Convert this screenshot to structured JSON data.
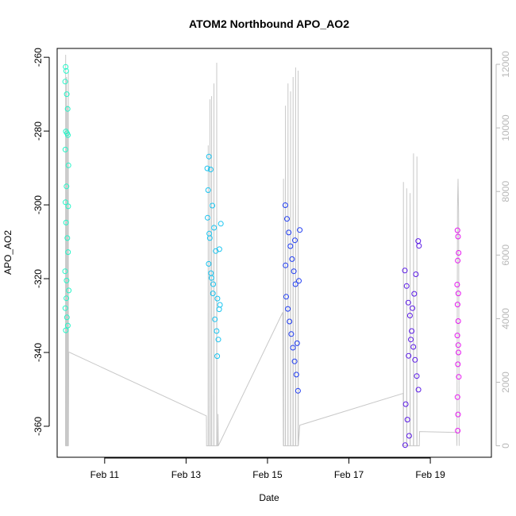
{
  "chart_data": {
    "type": "scatter",
    "title": "ATOM2 Northbound APO_AO2",
    "xlabel": "Date",
    "ylabel": "APO_AO2",
    "xlim": [
      "2018-02-09T20:00",
      "2018-02-20T12:00"
    ],
    "ylim": [
      -368.4,
      -257.6
    ],
    "y_ticks": [
      -360,
      -340,
      -320,
      -300,
      -280,
      -260
    ],
    "y_tick_labels": [
      "-360",
      "-340",
      "-320",
      "-300",
      "-280",
      "-260"
    ],
    "x_ticks": [
      "2018-02-11",
      "2018-02-13",
      "2018-02-15",
      "2018-02-17",
      "2018-02-19"
    ],
    "x_tick_labels": [
      "Feb 11",
      "Feb 13",
      "Feb 15",
      "Feb 17",
      "Feb 19"
    ],
    "y2_ylim": [
      -360,
      12500
    ],
    "y2_ticks": [
      0,
      2000,
      4000,
      6000,
      8000,
      10000,
      12000
    ],
    "y2_tick_labels": [
      "0",
      "2000",
      "4000",
      "6000",
      "8000",
      "10000",
      "12000"
    ],
    "y2_color": "#b8b8b8",
    "point_style": "open-circle",
    "color_scale": "time-gradient",
    "grid": false,
    "series": [
      {
        "color": "#26f5c8",
        "points": [
          [
            "2018-02-10T01:00",
            -262.6
          ],
          [
            "2018-02-10T01:20",
            -263.7
          ],
          [
            "2018-02-10T00:45",
            -266.6
          ],
          [
            "2018-02-10T01:40",
            -270.0
          ],
          [
            "2018-02-10T02:10",
            -274.0
          ],
          [
            "2018-02-10T01:10",
            -280.1
          ],
          [
            "2018-02-10T01:50",
            -280.6
          ],
          [
            "2018-02-10T02:20",
            -281.1
          ],
          [
            "2018-02-10T00:50",
            -285.0
          ],
          [
            "2018-02-10T02:40",
            -289.3
          ],
          [
            "2018-02-10T01:30",
            -295.0
          ],
          [
            "2018-02-10T00:55",
            -299.3
          ],
          [
            "2018-02-10T02:30",
            -300.4
          ],
          [
            "2018-02-10T01:15",
            -304.8
          ],
          [
            "2018-02-10T02:00",
            -309.0
          ],
          [
            "2018-02-10T00:40",
            -318.0
          ],
          [
            "2018-02-10T02:50",
            -323.2
          ],
          [
            "2018-02-10T01:25",
            -325.3
          ],
          [
            "2018-02-10T00:50",
            -328.0
          ],
          [
            "2018-02-10T01:45",
            -330.5
          ],
          [
            "2018-02-10T02:15",
            -332.7
          ],
          [
            "2018-02-10T01:05",
            -334.0
          ],
          [
            "2018-02-10T01:35",
            -320.5
          ],
          [
            "2018-02-10T02:25",
            -312.8
          ]
        ]
      },
      {
        "color": "#19c4f0",
        "points": [
          [
            "2018-02-13T12:30",
            -290.1
          ],
          [
            "2018-02-13T13:30",
            -286.9
          ],
          [
            "2018-02-13T14:30",
            -290.4
          ],
          [
            "2018-02-13T13:00",
            -296.0
          ],
          [
            "2018-02-13T15:30",
            -300.2
          ],
          [
            "2018-02-13T12:40",
            -303.5
          ],
          [
            "2018-02-13T16:30",
            -306.2
          ],
          [
            "2018-02-13T14:00",
            -309.0
          ],
          [
            "2018-02-13T17:30",
            -312.5
          ],
          [
            "2018-02-13T13:20",
            -316.0
          ],
          [
            "2018-02-13T15:00",
            -319.8
          ],
          [
            "2018-02-13T16:00",
            -321.5
          ],
          [
            "2018-02-13T18:30",
            -325.4
          ],
          [
            "2018-02-13T19:30",
            -328.3
          ],
          [
            "2018-02-13T17:00",
            -331.0
          ],
          [
            "2018-02-13T18:00",
            -334.2
          ],
          [
            "2018-02-13T19:00",
            -336.5
          ],
          [
            "2018-02-13T18:20",
            -341.0
          ],
          [
            "2018-02-13T20:00",
            -327.1
          ],
          [
            "2018-02-13T20:30",
            -305.1
          ],
          [
            "2018-02-13T19:40",
            -312.0
          ],
          [
            "2018-02-13T14:40",
            -318.5
          ],
          [
            "2018-02-13T13:40",
            -307.8
          ],
          [
            "2018-02-13T15:50",
            -324.0
          ]
        ]
      },
      {
        "color": "#1f3cf2",
        "points": [
          [
            "2018-02-15T10:30",
            -300.1
          ],
          [
            "2018-02-15T11:30",
            -303.8
          ],
          [
            "2018-02-15T12:30",
            -307.5
          ],
          [
            "2018-02-15T13:30",
            -311.2
          ],
          [
            "2018-02-15T14:30",
            -314.7
          ],
          [
            "2018-02-15T15:30",
            -318.0
          ],
          [
            "2018-02-15T16:30",
            -321.5
          ],
          [
            "2018-02-15T11:00",
            -324.9
          ],
          [
            "2018-02-15T12:00",
            -328.2
          ],
          [
            "2018-02-15T13:00",
            -331.6
          ],
          [
            "2018-02-15T14:00",
            -335.0
          ],
          [
            "2018-02-15T15:00",
            -338.7
          ],
          [
            "2018-02-15T16:00",
            -342.4
          ],
          [
            "2018-02-15T17:00",
            -346.0
          ],
          [
            "2018-02-15T18:00",
            -350.4
          ],
          [
            "2018-02-15T17:30",
            -337.5
          ],
          [
            "2018-02-15T18:30",
            -320.6
          ],
          [
            "2018-02-15T19:00",
            -306.8
          ],
          [
            "2018-02-15T10:40",
            -316.4
          ],
          [
            "2018-02-15T16:10",
            -309.6
          ]
        ]
      },
      {
        "color": "#5a19e6",
        "points": [
          [
            "2018-02-18T09:00",
            -317.8
          ],
          [
            "2018-02-18T10:00",
            -322.0
          ],
          [
            "2018-02-18T11:00",
            -326.5
          ],
          [
            "2018-02-18T12:00",
            -330.0
          ],
          [
            "2018-02-18T13:00",
            -334.2
          ],
          [
            "2018-02-18T14:00",
            -338.5
          ],
          [
            "2018-02-18T15:00",
            -342.0
          ],
          [
            "2018-02-18T16:00",
            -346.4
          ],
          [
            "2018-02-18T17:00",
            -350.1
          ],
          [
            "2018-02-18T09:30",
            -354.0
          ],
          [
            "2018-02-18T10:30",
            -358.2
          ],
          [
            "2018-02-18T11:30",
            -362.6
          ],
          [
            "2018-02-18T09:10",
            -365.1
          ],
          [
            "2018-02-18T17:20",
            -311.1
          ],
          [
            "2018-02-18T16:50",
            -309.8
          ],
          [
            "2018-02-18T15:30",
            -318.8
          ],
          [
            "2018-02-18T14:30",
            -324.1
          ],
          [
            "2018-02-18T13:30",
            -328.0
          ],
          [
            "2018-02-18T12:30",
            -336.5
          ],
          [
            "2018-02-18T11:10",
            -340.9
          ]
        ]
      },
      {
        "color": "#e619f0",
        "points": [
          [
            "2018-02-19T16:00",
            -306.9
          ],
          [
            "2018-02-19T16:20",
            -308.6
          ],
          [
            "2018-02-19T16:40",
            -313.0
          ],
          [
            "2018-02-19T16:10",
            -315.1
          ],
          [
            "2018-02-19T15:50",
            -321.6
          ],
          [
            "2018-02-19T16:30",
            -324.0
          ],
          [
            "2018-02-19T16:05",
            -327.0
          ],
          [
            "2018-02-19T16:25",
            -331.5
          ],
          [
            "2018-02-19T15:55",
            -335.4
          ],
          [
            "2018-02-19T16:35",
            -340.0
          ],
          [
            "2018-02-19T16:15",
            -343.2
          ],
          [
            "2018-02-19T16:45",
            -346.6
          ],
          [
            "2018-02-19T16:00",
            -352.1
          ],
          [
            "2018-02-19T16:20",
            -356.8
          ],
          [
            "2018-02-19T16:10",
            -361.2
          ],
          [
            "2018-02-19T16:30",
            -338.0
          ]
        ]
      }
    ],
    "secondary_series": {
      "axis": "right",
      "color": "#c8c8c8",
      "points": [
        [
          "2018-02-10T00:55",
          0
        ],
        [
          "2018-02-10T01:00",
          12300
        ],
        [
          "2018-02-10T01:05",
          0
        ],
        [
          "2018-02-10T01:25",
          0
        ],
        [
          "2018-02-10T01:30",
          11600
        ],
        [
          "2018-02-10T01:35",
          0
        ],
        [
          "2018-02-10T02:00",
          0
        ],
        [
          "2018-02-10T02:05",
          10700
        ],
        [
          "2018-02-10T02:10",
          0
        ],
        [
          "2018-02-10T02:30",
          0
        ],
        [
          "2018-02-10T02:35",
          11800
        ],
        [
          "2018-02-10T02:40",
          0
        ],
        [
          "2018-02-10T02:50",
          2950
        ],
        [
          "2018-02-13T12:00",
          940
        ],
        [
          "2018-02-13T12:05",
          0
        ],
        [
          "2018-02-13T13:00",
          0
        ],
        [
          "2018-02-13T13:05",
          9450
        ],
        [
          "2018-02-13T13:10",
          0
        ],
        [
          "2018-02-13T14:00",
          0
        ],
        [
          "2018-02-13T14:05",
          10900
        ],
        [
          "2018-02-13T14:10",
          0
        ],
        [
          "2018-02-13T15:00",
          0
        ],
        [
          "2018-02-13T15:05",
          11000
        ],
        [
          "2018-02-13T15:10",
          0
        ],
        [
          "2018-02-13T16:20",
          0
        ],
        [
          "2018-02-13T16:25",
          11400
        ],
        [
          "2018-02-13T16:30",
          0
        ],
        [
          "2018-02-13T18:00",
          0
        ],
        [
          "2018-02-13T18:05",
          12050
        ],
        [
          "2018-02-13T18:10",
          0
        ],
        [
          "2018-02-13T18:40",
          0
        ],
        [
          "2018-02-13T18:50",
          1000
        ],
        [
          "2018-02-13T19:00",
          0
        ],
        [
          "2018-02-15T09:00",
          4200
        ],
        [
          "2018-02-15T09:20",
          0
        ],
        [
          "2018-02-15T09:25",
          8400
        ],
        [
          "2018-02-15T09:30",
          0
        ],
        [
          "2018-02-15T10:30",
          0
        ],
        [
          "2018-02-15T10:35",
          10700
        ],
        [
          "2018-02-15T10:40",
          0
        ],
        [
          "2018-02-15T12:00",
          0
        ],
        [
          "2018-02-15T12:05",
          11400
        ],
        [
          "2018-02-15T12:10",
          0
        ],
        [
          "2018-02-15T13:30",
          0
        ],
        [
          "2018-02-15T13:35",
          11150
        ],
        [
          "2018-02-15T13:40",
          0
        ],
        [
          "2018-02-15T15:00",
          0
        ],
        [
          "2018-02-15T15:05",
          11600
        ],
        [
          "2018-02-15T15:10",
          0
        ],
        [
          "2018-02-15T16:30",
          0
        ],
        [
          "2018-02-15T16:35",
          11900
        ],
        [
          "2018-02-15T16:40",
          0
        ],
        [
          "2018-02-15T18:00",
          0
        ],
        [
          "2018-02-15T18:05",
          11800
        ],
        [
          "2018-02-15T18:10",
          0
        ],
        [
          "2018-02-15T19:00",
          650
        ],
        [
          "2018-02-18T08:00",
          1650
        ],
        [
          "2018-02-18T08:05",
          0
        ],
        [
          "2018-02-18T08:10",
          8300
        ],
        [
          "2018-02-18T08:15",
          0
        ],
        [
          "2018-02-18T10:00",
          0
        ],
        [
          "2018-02-18T10:05",
          8100
        ],
        [
          "2018-02-18T10:10",
          0
        ],
        [
          "2018-02-18T12:00",
          0
        ],
        [
          "2018-02-18T12:05",
          7950
        ],
        [
          "2018-02-18T12:10",
          0
        ],
        [
          "2018-02-18T14:00",
          0
        ],
        [
          "2018-02-18T14:05",
          9200
        ],
        [
          "2018-02-18T14:10",
          0
        ],
        [
          "2018-02-18T16:00",
          0
        ],
        [
          "2018-02-18T16:05",
          9100
        ],
        [
          "2018-02-18T16:10",
          0
        ],
        [
          "2018-02-18T17:30",
          0
        ],
        [
          "2018-02-18T17:40",
          450
        ],
        [
          "2018-02-19T15:30",
          420
        ],
        [
          "2018-02-19T15:40",
          0
        ],
        [
          "2018-02-19T16:00",
          7500
        ],
        [
          "2018-02-19T16:20",
          8400
        ],
        [
          "2018-02-19T16:40",
          7300
        ],
        [
          "2018-02-19T17:00",
          0
        ]
      ]
    }
  }
}
